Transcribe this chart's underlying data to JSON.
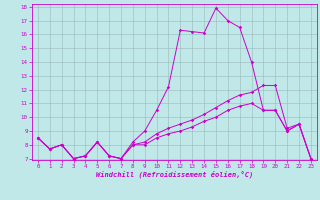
{
  "xlabel": "Windchill (Refroidissement éolien,°C)",
  "bg_color": "#c0e8e8",
  "line_color": "#cc00cc",
  "grid_color": "#9ababa",
  "x": [
    0,
    1,
    2,
    3,
    4,
    5,
    6,
    7,
    8,
    9,
    10,
    11,
    12,
    13,
    14,
    15,
    16,
    17,
    18,
    19,
    20,
    21,
    22,
    23
  ],
  "line1": [
    8.5,
    7.7,
    8.0,
    7.0,
    7.2,
    8.2,
    7.2,
    7.0,
    8.0,
    8.0,
    8.5,
    8.8,
    9.0,
    9.3,
    9.7,
    10.0,
    10.5,
    10.8,
    11.0,
    10.5,
    10.5,
    9.0,
    9.5,
    7.0
  ],
  "line2": [
    8.5,
    7.7,
    8.0,
    7.0,
    7.2,
    8.2,
    7.2,
    7.0,
    8.0,
    8.2,
    8.8,
    9.2,
    9.5,
    9.8,
    10.2,
    10.7,
    11.2,
    11.6,
    11.8,
    12.3,
    12.3,
    9.2,
    9.5,
    7.0
  ],
  "line3": [
    8.5,
    7.7,
    8.0,
    7.0,
    7.2,
    8.2,
    7.2,
    7.0,
    8.2,
    9.0,
    10.5,
    12.2,
    16.3,
    16.2,
    16.1,
    17.9,
    17.0,
    16.5,
    14.0,
    10.5,
    10.5,
    9.0,
    9.5,
    7.0
  ],
  "xlim": [
    0,
    23
  ],
  "ylim": [
    7,
    18
  ],
  "yticks": [
    7,
    8,
    9,
    10,
    11,
    12,
    13,
    14,
    15,
    16,
    17,
    18
  ],
  "xticks": [
    0,
    1,
    2,
    3,
    4,
    5,
    6,
    7,
    8,
    9,
    10,
    11,
    12,
    13,
    14,
    15,
    16,
    17,
    18,
    19,
    20,
    21,
    22,
    23
  ],
  "figwidth": 3.2,
  "figheight": 2.0,
  "dpi": 100
}
